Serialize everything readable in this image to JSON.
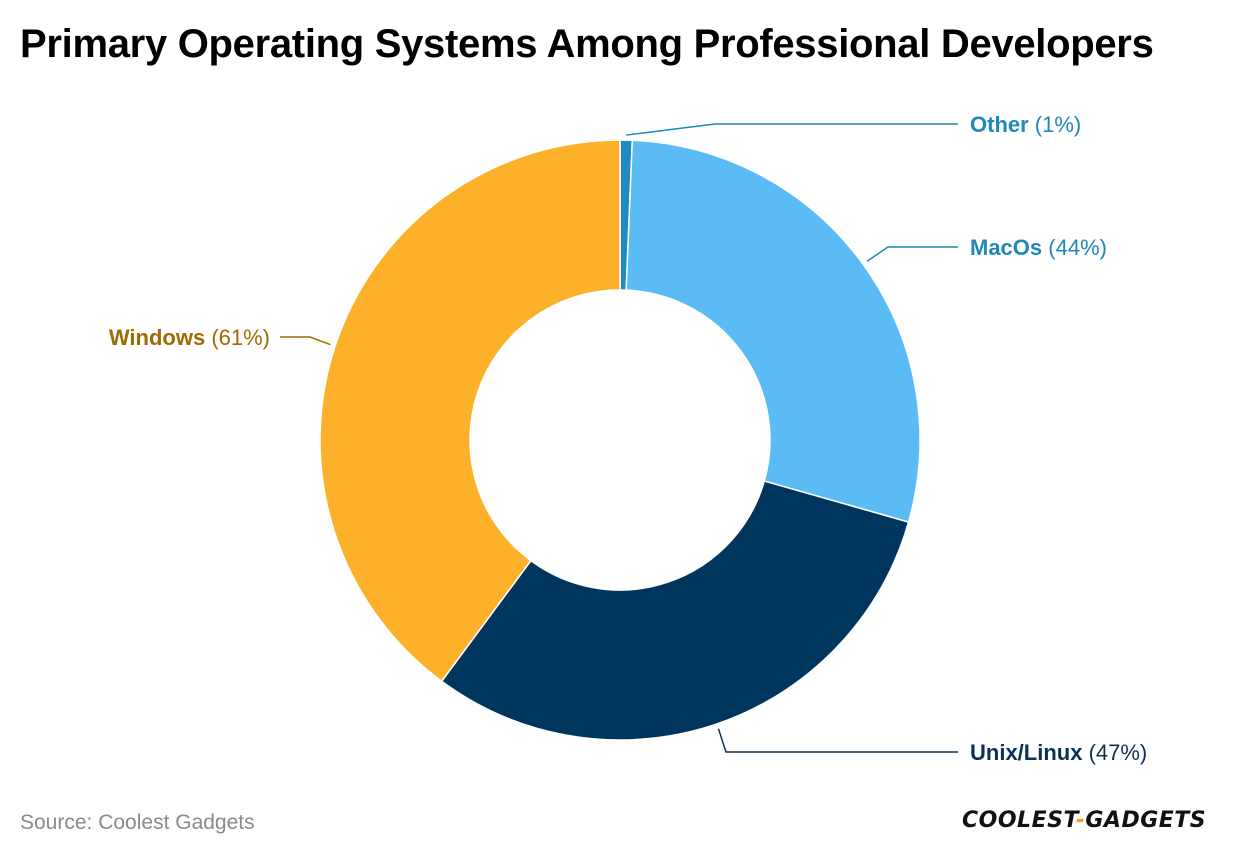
{
  "title": "Primary Operating Systems Among Professional Developers",
  "source": "Source: Coolest Gadgets",
  "logo": {
    "part1": "COOLEST",
    "dash": "-",
    "part2": "GADGETS"
  },
  "chart_data": {
    "type": "pie",
    "variant": "donut",
    "title": "Primary Operating Systems Among Professional Developers",
    "slices": [
      {
        "label": "Other",
        "value": 1,
        "display": "(1%)",
        "color": "#1e8bc3",
        "label_color": "#1e88b8"
      },
      {
        "label": "MacOs",
        "value": 44,
        "display": "(44%)",
        "color": "#5bbcf5",
        "label_color": "#1e88b8"
      },
      {
        "label": "Unix/Linux",
        "value": 47,
        "display": "(47%)",
        "color": "#00355d",
        "label_color": "#0b3256"
      },
      {
        "label": "Windows",
        "value": 61,
        "display": "(61%)",
        "color": "#fdb02a",
        "label_color": "#a06a00"
      }
    ]
  }
}
